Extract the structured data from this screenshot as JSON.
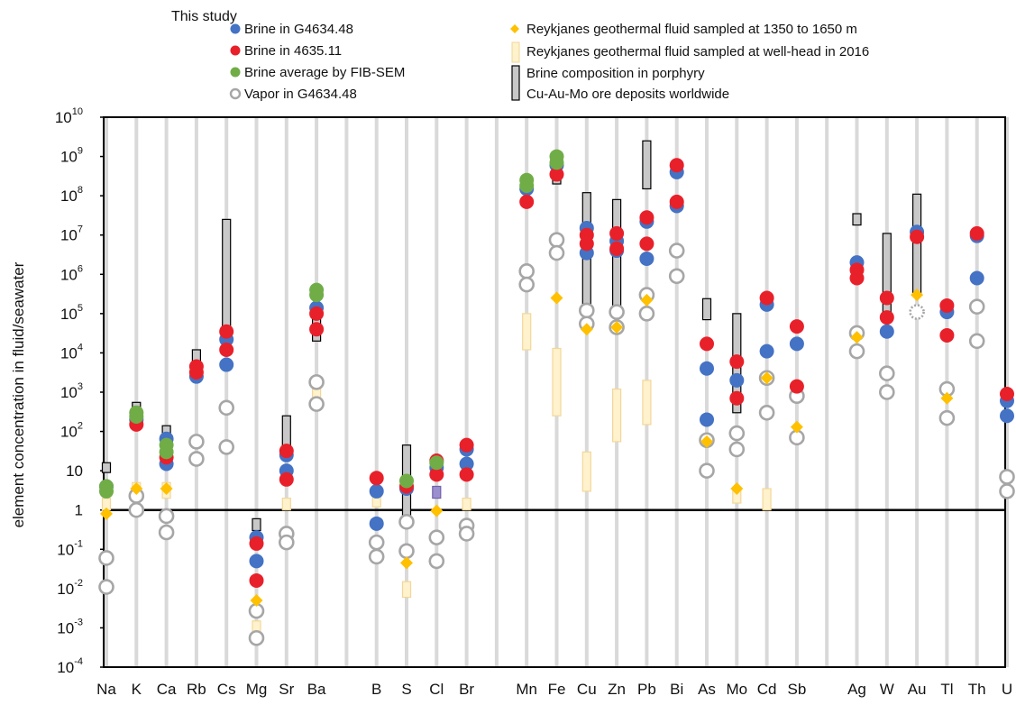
{
  "chart_data": {
    "type": "scatter",
    "title": "",
    "ylabel": "element concentration in fluid/seawater",
    "y_scale": "log",
    "ylim_exponent": [
      -4,
      10
    ],
    "y_tick_exponents": [
      -4,
      -3,
      -2,
      -1,
      0,
      1,
      2,
      3,
      4,
      5,
      6,
      7,
      8,
      9,
      10
    ],
    "y_tick_labels": {
      "-4": {
        "base": "10",
        "sup": "-4"
      },
      "-3": {
        "base": "10",
        "sup": "-3"
      },
      "-2": {
        "base": "10",
        "sup": "-2"
      },
      "-1": {
        "base": "10",
        "sup": "-1"
      },
      "0": {
        "base": "1",
        "sup": ""
      },
      "1": {
        "base": "10",
        "sup": ""
      },
      "2": {
        "base": "10",
        "sup": "2"
      },
      "3": {
        "base": "10",
        "sup": "3"
      },
      "4": {
        "base": "10",
        "sup": "4"
      },
      "5": {
        "base": "10",
        "sup": "5"
      },
      "6": {
        "base": "10",
        "sup": "6"
      },
      "7": {
        "base": "10",
        "sup": "7"
      },
      "8": {
        "base": "10",
        "sup": "8"
      },
      "9": {
        "base": "10",
        "sup": "9"
      },
      "10": {
        "base": "10",
        "sup": "10"
      }
    },
    "reference_line_value": 1,
    "categories": [
      "Na",
      "K",
      "Ca",
      "Rb",
      "Cs",
      "Mg",
      "Sr",
      "Ba",
      "",
      "B",
      "S",
      "Cl",
      "Br",
      "",
      "Mn",
      "Fe",
      "Cu",
      "Zn",
      "Pb",
      "Bi",
      "As",
      "Mo",
      "Cd",
      "Sb",
      "",
      "Ag",
      "W",
      "Au",
      "Tl",
      "Th",
      "U"
    ],
    "legend_header": "This study",
    "legend": [
      {
        "key": "brine_g4634",
        "label": "Brine in G4634.48",
        "marker": "circle",
        "color": "#4472c4"
      },
      {
        "key": "brine_4635",
        "label": "Brine in 4635.11",
        "marker": "circle",
        "color": "#e8202a"
      },
      {
        "key": "brine_fib",
        "label": "Brine average by FIB-SEM",
        "marker": "circle",
        "color": "#70ad47"
      },
      {
        "key": "vapor",
        "label": "Vapor in G4634.48",
        "marker": "open-circle",
        "color": "#a6a6a6"
      },
      {
        "key": "reyk_depth",
        "label": "Reykjanes geothermal fluid sampled at 1350 to 1650 m",
        "marker": "diamond",
        "color": "#ffc000"
      },
      {
        "key": "reyk_head",
        "label": "Reykjanes geothermal fluid sampled at well-head in 2016",
        "marker": "bar",
        "color": "#fff2cc"
      },
      {
        "key": "porphyry",
        "label": "Brine composition in porphyry",
        "label2": "Cu-Au-Mo ore deposits worldwide",
        "marker": "bar",
        "color": "#bfbfbf"
      }
    ],
    "series": {
      "brine_g4634": [
        {
          "x": "Na",
          "y": [
            4
          ]
        },
        {
          "x": "K",
          "y": [
            200
          ]
        },
        {
          "x": "Ca",
          "y": [
            65,
            15
          ]
        },
        {
          "x": "Rb",
          "y": [
            2500
          ]
        },
        {
          "x": "Cs",
          "y": [
            22000,
            5000
          ]
        },
        {
          "x": "Mg",
          "y": [
            0.2,
            0.05
          ]
        },
        {
          "x": "Sr",
          "y": [
            25,
            10
          ]
        },
        {
          "x": "Ba",
          "y": [
            140000
          ]
        },
        {
          "x": "B",
          "y": [
            3,
            0.45
          ]
        },
        {
          "x": "S",
          "y": [
            3.5
          ]
        },
        {
          "x": "Cl",
          "y": [
            12
          ]
        },
        {
          "x": "Br",
          "y": [
            35,
            15
          ]
        },
        {
          "x": "Mn",
          "y": [
            150000000
          ]
        },
        {
          "x": "Fe",
          "y": [
            600000000
          ]
        },
        {
          "x": "Cu",
          "y": [
            15000000,
            3500000
          ]
        },
        {
          "x": "Zn",
          "y": [
            7000000,
            4000000
          ]
        },
        {
          "x": "Pb",
          "y": [
            22000000,
            2500000
          ]
        },
        {
          "x": "Bi",
          "y": [
            400000000,
            55000000
          ]
        },
        {
          "x": "As",
          "y": [
            4000,
            200
          ]
        },
        {
          "x": "Mo",
          "y": [
            2000
          ]
        },
        {
          "x": "Cd",
          "y": [
            170000,
            11000
          ]
        },
        {
          "x": "Sb",
          "y": [
            17000
          ]
        },
        {
          "x": "Ag",
          "y": [
            2000000
          ]
        },
        {
          "x": "W",
          "y": [
            35000
          ]
        },
        {
          "x": "Au",
          "y": [
            12000000
          ]
        },
        {
          "x": "Tl",
          "y": [
            110000
          ]
        },
        {
          "x": "Th",
          "y": [
            9500000,
            800000
          ]
        },
        {
          "x": "U",
          "y": [
            600,
            250
          ]
        }
      ],
      "brine_4635": [
        {
          "x": "K",
          "y": [
            150
          ]
        },
        {
          "x": "Ca",
          "y": [
            22
          ]
        },
        {
          "x": "Rb",
          "y": [
            4500,
            3200
          ]
        },
        {
          "x": "Cs",
          "y": [
            35000,
            12000
          ]
        },
        {
          "x": "Mg",
          "y": [
            0.14,
            0.016
          ]
        },
        {
          "x": "Sr",
          "y": [
            32,
            6
          ]
        },
        {
          "x": "Ba",
          "y": [
            100000,
            40000
          ]
        },
        {
          "x": "B",
          "y": [
            6.5
          ]
        },
        {
          "x": "S",
          "y": [
            4
          ]
        },
        {
          "x": "Cl",
          "y": [
            18,
            8
          ]
        },
        {
          "x": "Br",
          "y": [
            45,
            8
          ]
        },
        {
          "x": "Mn",
          "y": [
            70000000
          ]
        },
        {
          "x": "Fe",
          "y": [
            350000000
          ]
        },
        {
          "x": "Cu",
          "y": [
            10000000,
            6000000
          ]
        },
        {
          "x": "Zn",
          "y": [
            11000000,
            4500000
          ]
        },
        {
          "x": "Pb",
          "y": [
            28000000,
            6000000
          ]
        },
        {
          "x": "Bi",
          "y": [
            600000000,
            70000000
          ]
        },
        {
          "x": "As",
          "y": [
            17000
          ]
        },
        {
          "x": "Mo",
          "y": [
            6000,
            700
          ]
        },
        {
          "x": "Cd",
          "y": [
            250000
          ]
        },
        {
          "x": "Sb",
          "y": [
            47000,
            1400
          ]
        },
        {
          "x": "Ag",
          "y": [
            1300000,
            800000
          ]
        },
        {
          "x": "W",
          "y": [
            250000,
            80000
          ]
        },
        {
          "x": "Au",
          "y": [
            9000000
          ]
        },
        {
          "x": "Tl",
          "y": [
            160000,
            28000
          ]
        },
        {
          "x": "Th",
          "y": [
            11000000
          ]
        },
        {
          "x": "U",
          "y": [
            900
          ]
        }
      ],
      "brine_fib": [
        {
          "x": "Na",
          "y": [
            4,
            3
          ]
        },
        {
          "x": "K",
          "y": [
            300,
            240
          ]
        },
        {
          "x": "Ca",
          "y": [
            45,
            30
          ]
        },
        {
          "x": "Ba",
          "y": [
            400000,
            300000
          ]
        },
        {
          "x": "S",
          "y": [
            5.5
          ]
        },
        {
          "x": "Cl",
          "y": [
            16
          ]
        },
        {
          "x": "Mn",
          "y": [
            250000000,
            180000000
          ]
        },
        {
          "x": "Fe",
          "y": [
            1000000000,
            700000000
          ]
        }
      ],
      "vapor": [
        {
          "x": "Na",
          "y": [
            0.06,
            0.011
          ]
        },
        {
          "x": "K",
          "y": [
            2.3,
            1
          ]
        },
        {
          "x": "Ca",
          "y": [
            0.7,
            0.27
          ]
        },
        {
          "x": "Rb",
          "y": [
            55,
            20
          ]
        },
        {
          "x": "Cs",
          "y": [
            400,
            40
          ]
        },
        {
          "x": "Mg",
          "y": [
            0.0027,
            0.00055
          ]
        },
        {
          "x": "Sr",
          "y": [
            0.25,
            0.15
          ]
        },
        {
          "x": "Ba",
          "y": [
            1800,
            500
          ]
        },
        {
          "x": "B",
          "y": [
            0.15,
            0.065
          ]
        },
        {
          "x": "S",
          "y": [
            0.5,
            0.09
          ]
        },
        {
          "x": "Cl",
          "y": [
            0.2,
            0.05
          ]
        },
        {
          "x": "Br",
          "y": [
            0.4,
            0.25
          ]
        },
        {
          "x": "Mn",
          "y": [
            1200000,
            550000
          ]
        },
        {
          "x": "Fe",
          "y": [
            7500000,
            3500000
          ]
        },
        {
          "x": "Cu",
          "y": [
            120000,
            55000
          ]
        },
        {
          "x": "Zn",
          "y": [
            110000,
            45000
          ]
        },
        {
          "x": "Pb",
          "y": [
            300000,
            100000
          ]
        },
        {
          "x": "Bi",
          "y": [
            4000000,
            900000
          ]
        },
        {
          "x": "As",
          "y": [
            60,
            10
          ]
        },
        {
          "x": "Mo",
          "y": [
            90,
            35
          ]
        },
        {
          "x": "Cd",
          "y": [
            2300,
            300
          ]
        },
        {
          "x": "Sb",
          "y": [
            800,
            70
          ]
        },
        {
          "x": "Ag",
          "y": [
            32000,
            11000
          ]
        },
        {
          "x": "W",
          "y": [
            3000,
            1000
          ]
        },
        {
          "x": "Au",
          "y": [
            110000
          ]
        },
        {
          "x": "Tl",
          "y": [
            1200,
            220
          ]
        },
        {
          "x": "Th",
          "y": [
            150000,
            20000
          ]
        },
        {
          "x": "U",
          "y": [
            7,
            3
          ]
        }
      ],
      "reyk_depth": [
        {
          "x": "Na",
          "y": 0.8
        },
        {
          "x": "K",
          "y": 3.5
        },
        {
          "x": "Ca",
          "y": 3.5
        },
        {
          "x": "Mg",
          "y": 0.005
        },
        {
          "x": "S",
          "y": 0.045
        },
        {
          "x": "Cl",
          "y": 0.95
        },
        {
          "x": "Fe",
          "y": 250000
        },
        {
          "x": "Cu",
          "y": 40000
        },
        {
          "x": "Zn",
          "y": 45000
        },
        {
          "x": "Pb",
          "y": 220000
        },
        {
          "x": "As",
          "y": 55
        },
        {
          "x": "Mo",
          "y": 3.5
        },
        {
          "x": "Cd",
          "y": 2300
        },
        {
          "x": "Sb",
          "y": 130
        },
        {
          "x": "Ag",
          "y": 25000
        },
        {
          "x": "Au",
          "y": 300000
        },
        {
          "x": "Tl",
          "y": 700
        }
      ],
      "reyk_head": [
        {
          "x": "Na",
          "y0": 1,
          "y1": 2
        },
        {
          "x": "K",
          "y0": 2,
          "y1": 5
        },
        {
          "x": "Ca",
          "y0": 2,
          "y1": 5
        },
        {
          "x": "Mg",
          "y0": 0.0005,
          "y1": 0.0015
        },
        {
          "x": "Sr",
          "y0": 1,
          "y1": 2
        },
        {
          "x": "Ba",
          "y0": 600,
          "y1": 1300
        },
        {
          "x": "B",
          "y0": 1.2,
          "y1": 2.8
        },
        {
          "x": "S",
          "y0": 0.006,
          "y1": 0.015
        },
        {
          "x": "Br",
          "y0": 1,
          "y1": 2
        },
        {
          "x": "Mn",
          "y0": 12000,
          "y1": 100000
        },
        {
          "x": "Fe",
          "y0": 250,
          "y1": 13000
        },
        {
          "x": "Cu",
          "y0": 3,
          "y1": 30
        },
        {
          "x": "Zn",
          "y0": 55,
          "y1": 1200
        },
        {
          "x": "Pb",
          "y0": 150,
          "y1": 2000
        },
        {
          "x": "Mo",
          "y0": 1.5,
          "y1": 3.5
        },
        {
          "x": "Cd",
          "y0": 1,
          "y1": 3.5
        }
      ],
      "porphyry": [
        {
          "x": "Na",
          "y0": 9,
          "y1": 16
        },
        {
          "x": "K",
          "y0": 350,
          "y1": 550
        },
        {
          "x": "Ca",
          "y0": 80,
          "y1": 140
        },
        {
          "x": "Rb",
          "y0": 5000,
          "y1": 12000
        },
        {
          "x": "Cs",
          "y0": 10000,
          "y1": 25000000
        },
        {
          "x": "Mg",
          "y0": 0.3,
          "y1": 0.6
        },
        {
          "x": "Sr",
          "y0": 30,
          "y1": 250
        },
        {
          "x": "Ba",
          "y0": 20000,
          "y1": 150000
        },
        {
          "x": "S",
          "y0": 0.5,
          "y1": 45
        },
        {
          "x": "Mn",
          "y0": 120000000,
          "y1": 220000000
        },
        {
          "x": "Fe",
          "y0": 200000000,
          "y1": 1100000000
        },
        {
          "x": "Cu",
          "y0": 150000,
          "y1": 120000000
        },
        {
          "x": "Zn",
          "y0": 100000,
          "y1": 80000000
        },
        {
          "x": "Pb",
          "y0": 150000000,
          "y1": 2500000000
        },
        {
          "x": "As",
          "y0": 70000,
          "y1": 240000
        },
        {
          "x": "Mo",
          "y0": 300,
          "y1": 100000
        },
        {
          "x": "Ag",
          "y0": 18000000,
          "y1": 35000000
        },
        {
          "x": "W",
          "y0": 80000,
          "y1": 11000000
        },
        {
          "x": "Au",
          "y0": 300000,
          "y1": 110000000
        }
      ],
      "highlight": [
        {
          "x": "Cl",
          "y0": 2,
          "y1": 4,
          "color": "#7060a8"
        }
      ]
    }
  }
}
